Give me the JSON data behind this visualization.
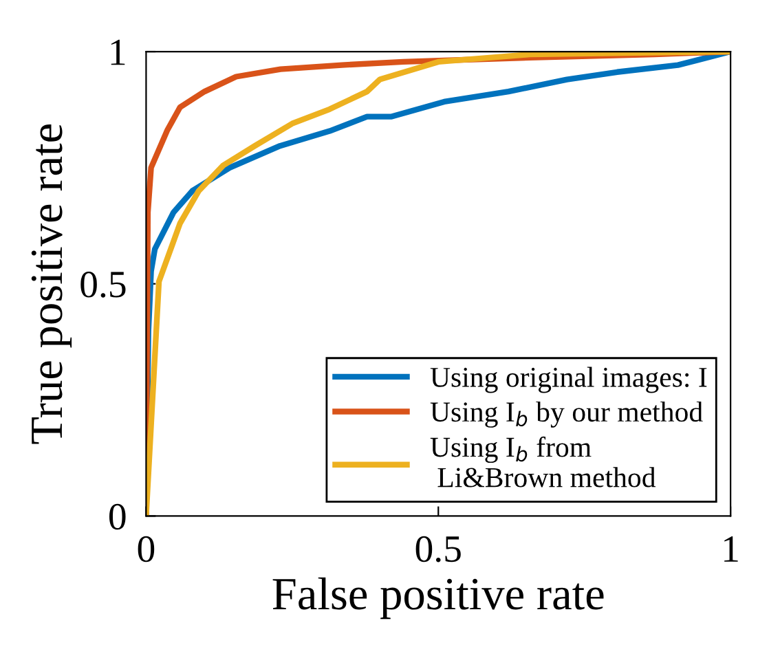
{
  "chart_data": {
    "type": "line",
    "xlabel": "False positive rate",
    "ylabel": "True positive rate",
    "xlim": [
      0,
      1
    ],
    "ylim": [
      0,
      1
    ],
    "xticks": [
      0,
      0.5,
      1
    ],
    "yticks": [
      0,
      0.5,
      1
    ],
    "grid": false,
    "legend": "bottom right",
    "marker": "none",
    "line_style": "solid",
    "series": [
      {
        "name": "Using original images: I",
        "color": "#0072bd",
        "x": [
          0,
          0.004,
          0.0085,
          0.015,
          0.047,
          0.079,
          0.143,
          0.229,
          0.314,
          0.378,
          0.42,
          0.51,
          0.62,
          0.72,
          0.806,
          0.91,
          1
        ],
        "values": [
          0,
          0.4,
          0.527,
          0.575,
          0.654,
          0.7,
          0.75,
          0.797,
          0.829,
          0.86,
          0.86,
          0.892,
          0.914,
          0.94,
          0.956,
          0.971,
          1
        ]
      },
      {
        "name": "Using I$_{b}$ by our method",
        "color": "#d95319",
        "x": [
          0,
          0.003,
          0.0085,
          0.036,
          0.058,
          0.1,
          0.154,
          0.23,
          0.335,
          0.44,
          0.656,
          0.87,
          1
        ],
        "values": [
          0,
          0.654,
          0.75,
          0.83,
          0.88,
          0.914,
          0.946,
          0.962,
          0.971,
          0.978,
          0.987,
          0.994,
          1
        ]
      },
      {
        "name": "Using I$_{b}$ from\n Li&Brown method",
        "color": "#edb120",
        "x": [
          0,
          0.022,
          0.058,
          0.09,
          0.132,
          0.186,
          0.25,
          0.314,
          0.378,
          0.4,
          0.5,
          0.656,
          1
        ],
        "values": [
          0,
          0.505,
          0.63,
          0.7,
          0.755,
          0.797,
          0.845,
          0.876,
          0.914,
          0.94,
          0.978,
          0.994,
          1
        ]
      }
    ]
  }
}
